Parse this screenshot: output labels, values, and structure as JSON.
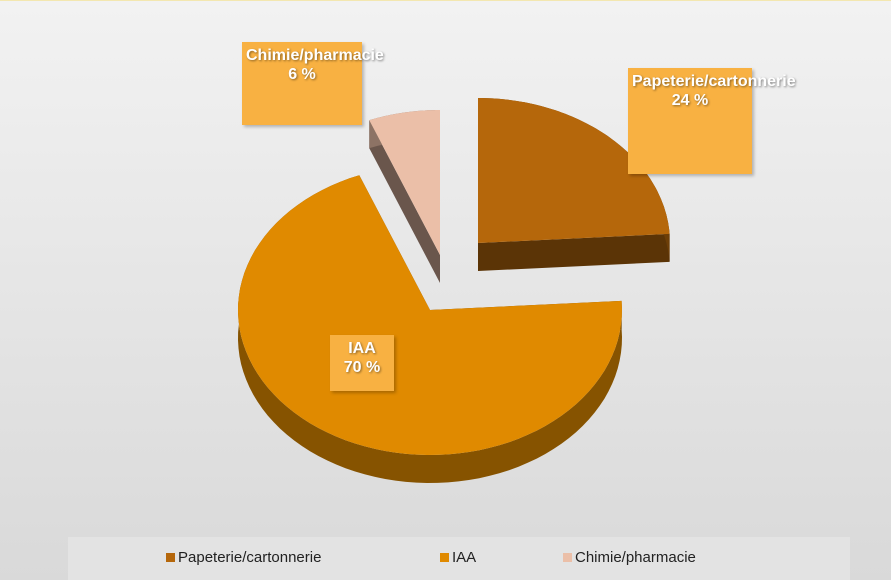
{
  "chart_data": {
    "type": "pie",
    "categories": [
      "Papeterie/cartonnerie",
      "IAA",
      "Chimie/pharmacie"
    ],
    "values": [
      24,
      70,
      6
    ],
    "value_labels": [
      "24 %",
      "70 %",
      "6 %"
    ],
    "colors": [
      "#b5670b",
      "#e08a00",
      "#ebbfa8"
    ],
    "legend": "bottom"
  }
}
